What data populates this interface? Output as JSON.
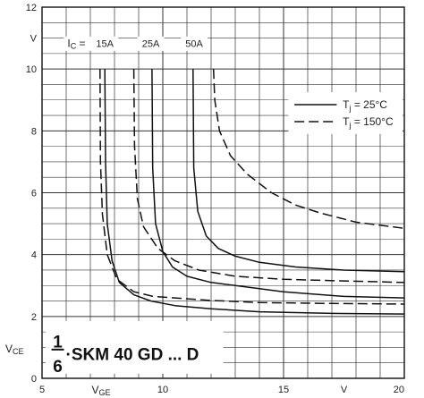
{
  "chart_data": {
    "type": "line",
    "title": "",
    "x_range": [
      5,
      20
    ],
    "y_range": [
      0,
      12
    ],
    "x_ticks": [
      {
        "value": 5,
        "label": "5"
      },
      {
        "value": 10,
        "label": "10"
      },
      {
        "value": 15,
        "label": "15"
      },
      {
        "value": 20,
        "label": "20"
      }
    ],
    "x_unit": "V",
    "x_unit_at": 17.5,
    "x_axis_label": {
      "main": "V",
      "sub": "GE"
    },
    "y_ticks": [
      {
        "value": 0,
        "label": "0"
      },
      {
        "value": 2,
        "label": "2"
      },
      {
        "value": 4,
        "label": "4"
      },
      {
        "value": 6,
        "label": "6"
      },
      {
        "value": 8,
        "label": "8"
      },
      {
        "value": 10,
        "label": "10"
      },
      {
        "value": 12,
        "label": "12"
      }
    ],
    "y_unit": "V",
    "y_axis_label": {
      "main": "V",
      "sub": "CE"
    },
    "grid": true,
    "ic_label": {
      "main": "I",
      "sub": "C",
      "suffix": " ="
    },
    "current_labels": [
      {
        "text": "15A",
        "x": 7.6
      },
      {
        "text": "25A",
        "x": 9.5
      },
      {
        "text": "50A",
        "x": 11.3
      }
    ],
    "legend": {
      "placement": "top-right",
      "entries": [
        {
          "style": "solid",
          "main": "T",
          "sub": "j",
          "text": " =  25°C"
        },
        {
          "style": "dashed",
          "main": "T",
          "sub": "j",
          "text": " =  150°C"
        }
      ]
    },
    "annotation": {
      "numerator": "1",
      "denominator": "6",
      "text": "·SKM  40  GD  ...  D"
    },
    "series": [
      {
        "style": "solid",
        "current": "15A",
        "x": [
          7.6,
          7.63,
          7.7,
          7.9,
          8.2,
          8.8,
          9.5,
          10.5,
          12,
          14,
          17,
          20
        ],
        "y": [
          10.0,
          7.0,
          5.0,
          3.8,
          3.1,
          2.7,
          2.5,
          2.35,
          2.25,
          2.15,
          2.1,
          2.08
        ]
      },
      {
        "style": "dashed",
        "current": "15A",
        "x": [
          7.4,
          7.42,
          7.5,
          7.7,
          8.1,
          8.8,
          9.6,
          10.5,
          12,
          14,
          17,
          20
        ],
        "y": [
          10.0,
          7.0,
          5.3,
          4.0,
          3.2,
          2.8,
          2.65,
          2.6,
          2.52,
          2.45,
          2.42,
          2.4
        ]
      },
      {
        "style": "solid",
        "current": "25A",
        "x": [
          9.55,
          9.58,
          9.7,
          10.0,
          10.4,
          11,
          12,
          13,
          15,
          17.5,
          20
        ],
        "y": [
          10.0,
          6.8,
          5.0,
          4.1,
          3.6,
          3.3,
          3.1,
          3.0,
          2.8,
          2.65,
          2.6
        ]
      },
      {
        "style": "dashed",
        "current": "25A",
        "x": [
          8.8,
          8.83,
          8.95,
          9.2,
          9.8,
          10.5,
          11.5,
          13,
          15,
          17.5,
          20
        ],
        "y": [
          10.0,
          7.5,
          5.8,
          4.9,
          4.2,
          3.8,
          3.5,
          3.3,
          3.2,
          3.15,
          3.1
        ]
      },
      {
        "style": "solid",
        "current": "50A",
        "x": [
          11.25,
          11.28,
          11.45,
          11.8,
          12.3,
          13,
          14,
          15.5,
          17.5,
          20
        ],
        "y": [
          10.0,
          6.8,
          5.4,
          4.6,
          4.2,
          3.95,
          3.75,
          3.6,
          3.5,
          3.45
        ]
      },
      {
        "style": "dashed",
        "current": "50A",
        "x": [
          12.1,
          12.15,
          12.35,
          12.8,
          13.5,
          14.5,
          15.5,
          16.5,
          18,
          20
        ],
        "y": [
          10.0,
          9.0,
          8.0,
          7.2,
          6.6,
          6.0,
          5.6,
          5.35,
          5.05,
          4.85
        ]
      }
    ]
  }
}
